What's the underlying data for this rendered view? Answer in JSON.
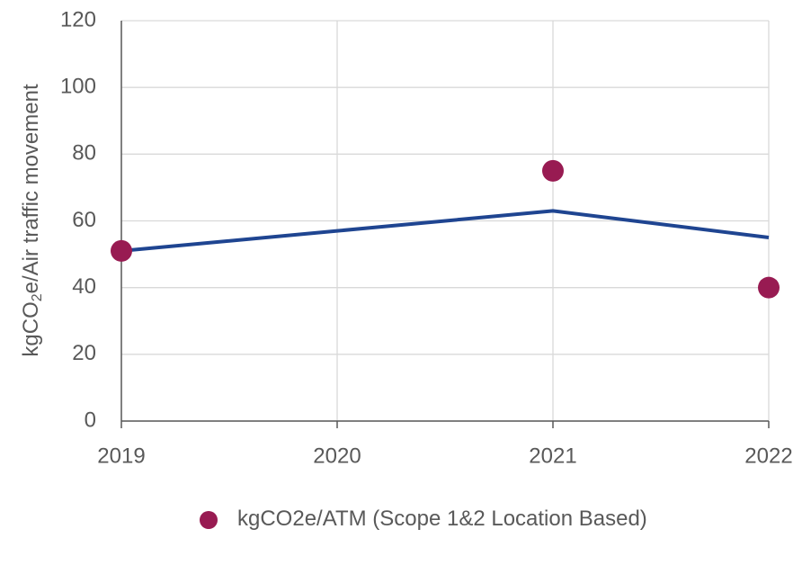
{
  "chart_data": {
    "type": "line",
    "y_label": [
      "kgCO",
      "2",
      "e/Air traffic movement"
    ],
    "x": [
      2019,
      2020,
      2021,
      2022
    ],
    "xlim": [
      2019,
      2022
    ],
    "xticks": [
      2019,
      2020,
      2021,
      2022
    ],
    "ylim": [
      0,
      120
    ],
    "yticks": [
      0,
      20,
      40,
      60,
      80,
      100,
      120
    ],
    "grid": true,
    "series": [
      {
        "style": "line",
        "color": "#1f4591",
        "values": [
          51,
          57,
          63,
          55
        ]
      },
      {
        "name": "kgCO2e/ATM (Scope 1&2 Location Based)",
        "style": "marker",
        "color": "#981b52",
        "values": [
          51,
          null,
          75,
          40
        ]
      }
    ]
  }
}
